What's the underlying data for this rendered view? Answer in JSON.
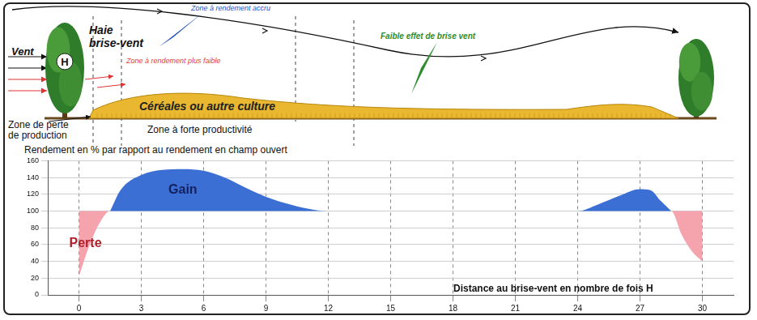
{
  "chart_data": {
    "type": "area",
    "y_label": "Rendement en % par rapport au rendement en champ ouvert",
    "x_label": "Distance au brise-vent en nombre de fois H",
    "baseline": 100,
    "series": [
      {
        "name": "Gain",
        "color": "#3b6fd4",
        "x": [
          1.5,
          2,
          3,
          4,
          5,
          6,
          7,
          8,
          9,
          10,
          11,
          12,
          24,
          25,
          26,
          27,
          27.5,
          28,
          28.5
        ],
        "values": [
          100,
          125,
          143,
          149,
          150,
          148,
          140,
          128,
          117,
          109,
          103,
          100,
          100,
          108,
          118,
          126,
          125,
          112,
          100
        ]
      },
      {
        "name": "Perte",
        "color": "#f5a3ad",
        "x": [
          0,
          0.3,
          0.6,
          1,
          1.5,
          28.5,
          29,
          29.5,
          30
        ],
        "values": [
          22,
          45,
          65,
          86,
          100,
          100,
          72,
          52,
          40
        ]
      }
    ],
    "xlim": [
      -1.5,
      31.5
    ],
    "xticks": [
      0,
      3,
      6,
      9,
      12,
      15,
      18,
      21,
      24,
      27,
      30
    ],
    "ylim": [
      0,
      160
    ],
    "yticks": [
      0,
      20,
      40,
      60,
      80,
      100,
      120,
      140,
      160
    ],
    "grid": true
  },
  "illustration": {
    "wind": "Vent",
    "hedge_mark": "H",
    "hedge": [
      "Haie",
      "brise-vent"
    ],
    "zone_increased": "Zone à rendement accru",
    "zone_lower": "Zone à rendement plus faible",
    "weak_effect": "Faible effet de brise vent",
    "crop": "Céréales ou autre culture",
    "loss_zone": [
      "Zone de perte",
      "de production"
    ],
    "high_zone": "Zone à forte productivité"
  }
}
